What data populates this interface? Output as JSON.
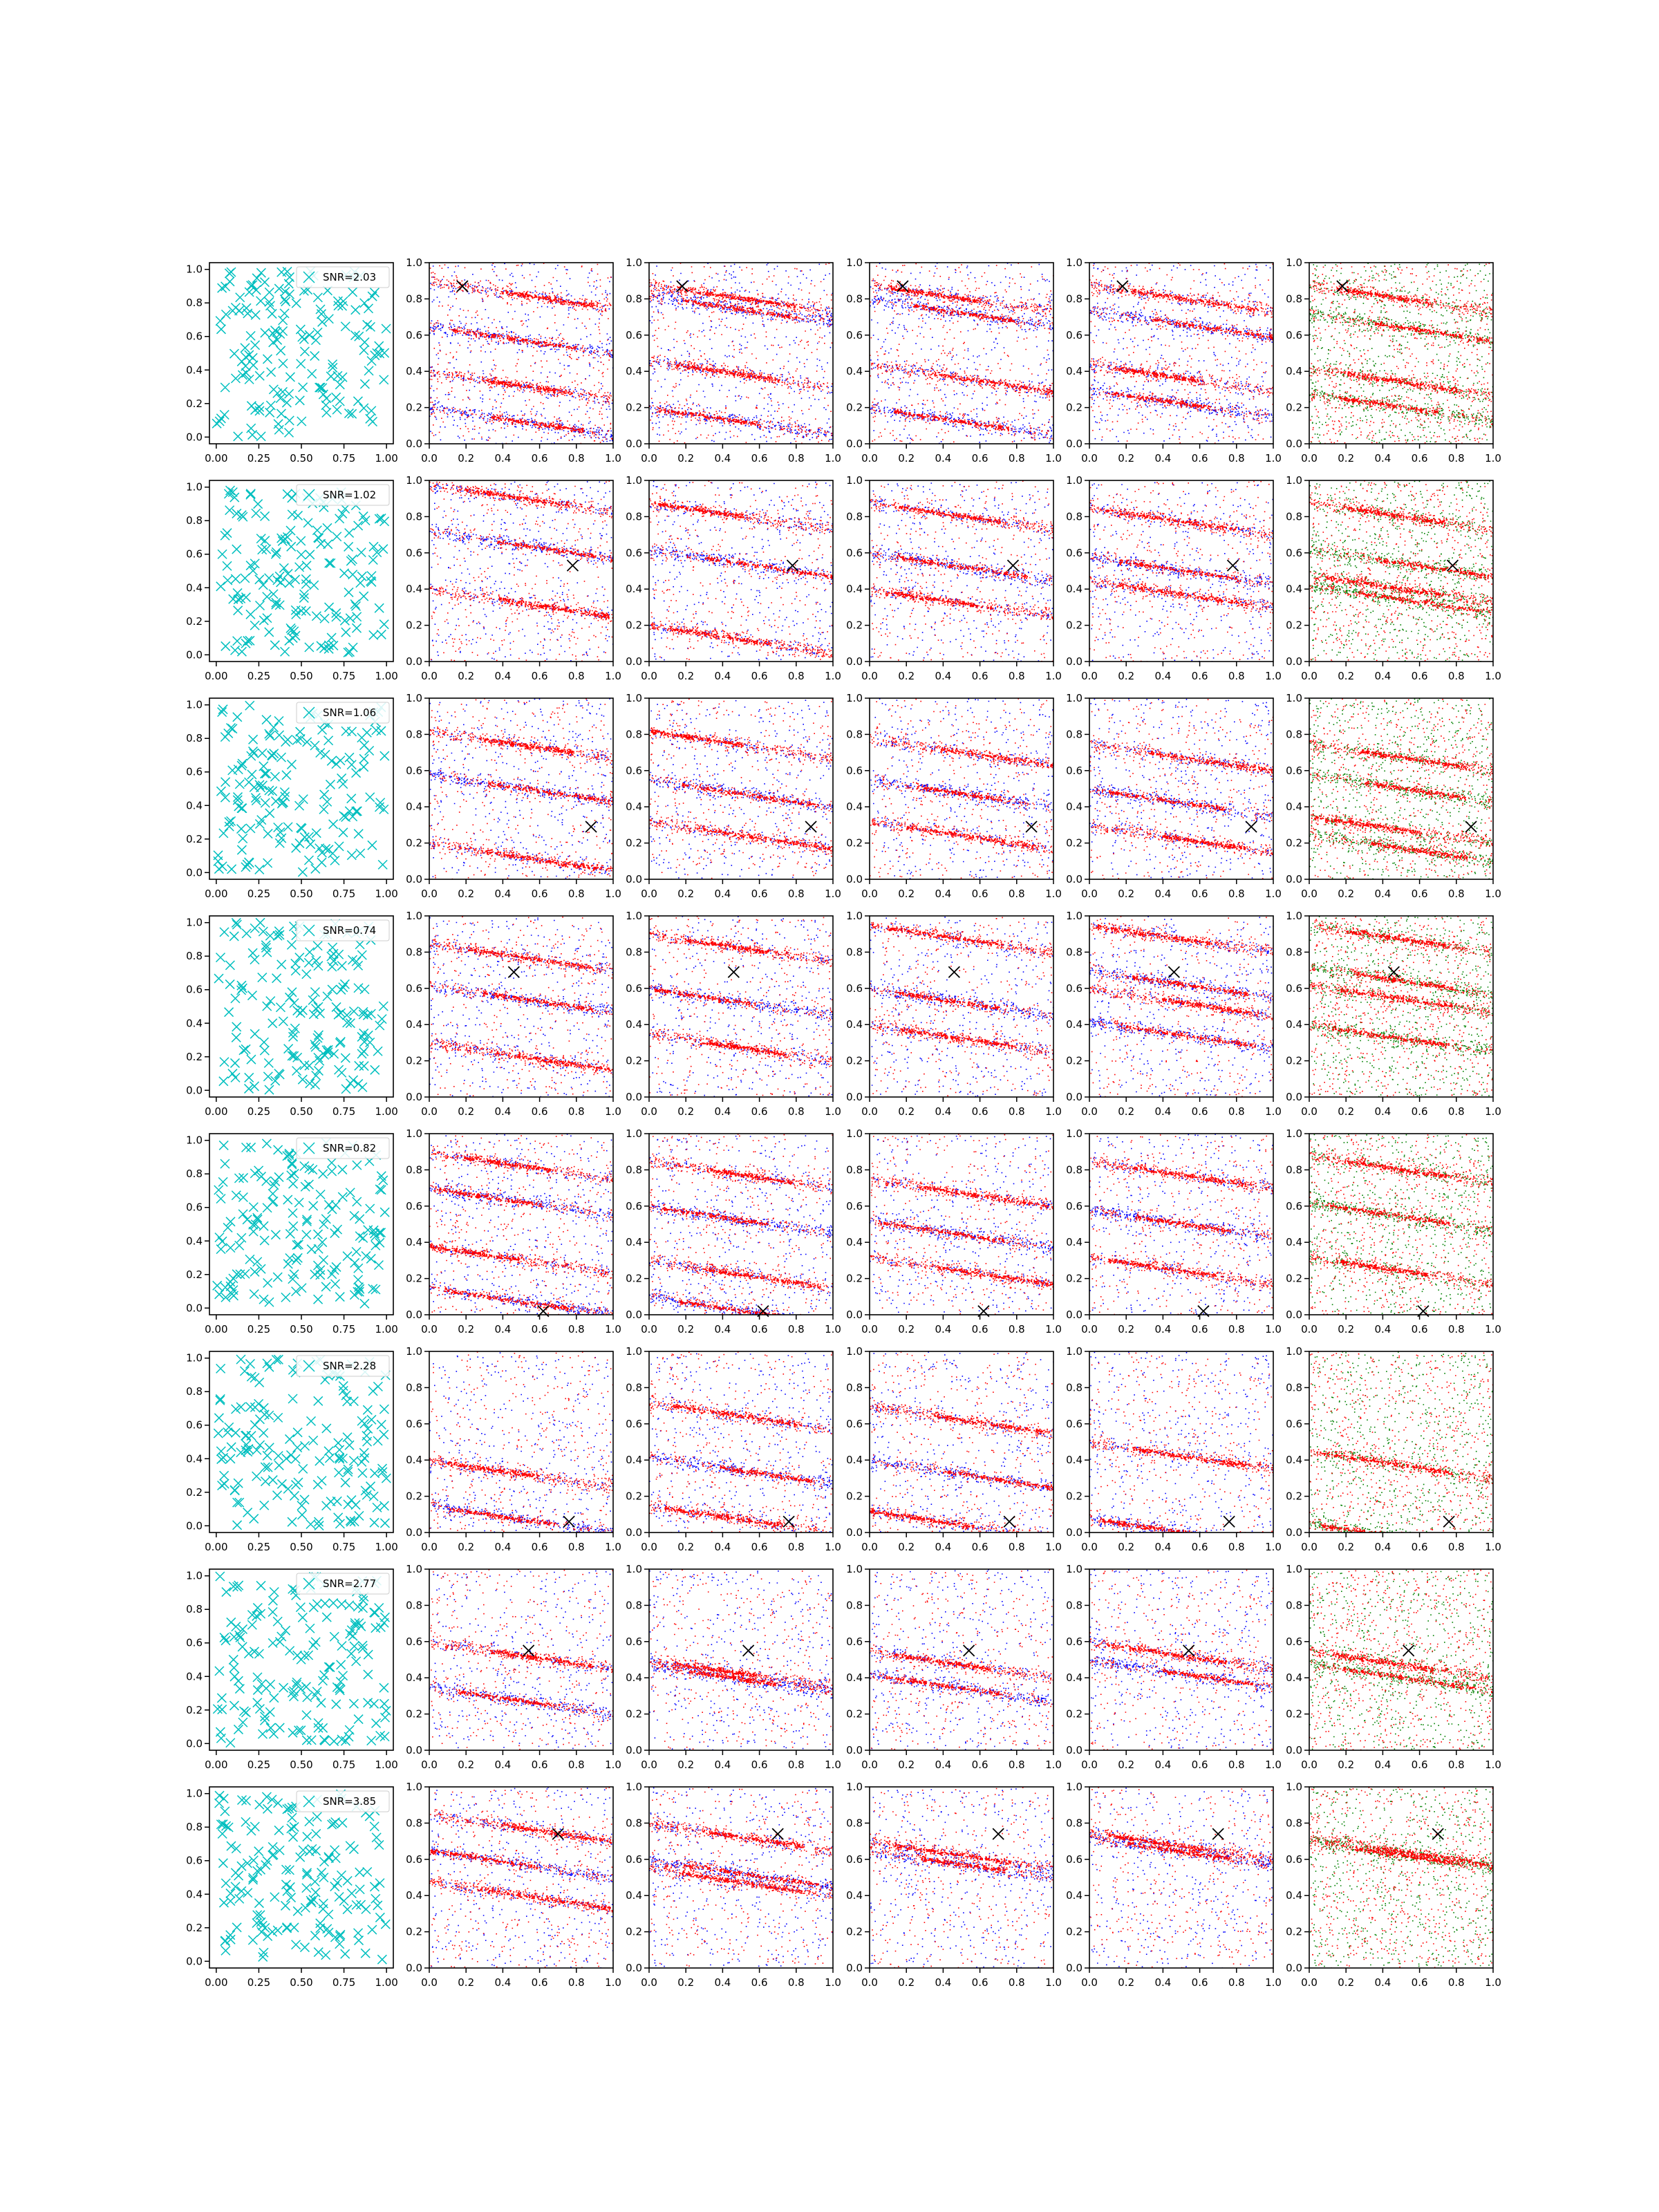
{
  "figure": {
    "layout": "8 rows x 6 columns grid of scatter subplots",
    "column_panels": [
      {
        "type": "scatter",
        "marker": "x",
        "color_names": [
          "cyan"
        ],
        "legend": "upper-right"
      },
      {
        "type": "scatter",
        "marker": "dot",
        "color_names": [
          "red",
          "blue"
        ],
        "overlay_marker": "x"
      },
      {
        "type": "scatter",
        "marker": "dot",
        "color_names": [
          "red",
          "blue"
        ],
        "overlay_marker": "x"
      },
      {
        "type": "scatter",
        "marker": "dot",
        "color_names": [
          "red",
          "blue"
        ],
        "overlay_marker": "x"
      },
      {
        "type": "scatter",
        "marker": "dot",
        "color_names": [
          "red",
          "blue"
        ],
        "overlay_marker": "x"
      },
      {
        "type": "scatter",
        "marker": "dot",
        "color_names": [
          "red",
          "green"
        ],
        "overlay_marker": "x"
      }
    ],
    "colors": {
      "cyan": "#00bfbf",
      "red": "#ff0000",
      "blue": "#0000ff",
      "green": "#008000",
      "cross": "#000000",
      "axes": "#000000",
      "background": "#ffffff"
    }
  },
  "chart_data": {
    "type": "scatter",
    "rows": 8,
    "cols": 6,
    "first_column": {
      "xlim": [
        -0.04,
        1.04
      ],
      "ylim": [
        -0.04,
        1.04
      ],
      "xticks": [
        "0.00",
        "0.25",
        "0.50",
        "0.75",
        "1.00"
      ],
      "yticks": [
        "0.0",
        "0.2",
        "0.4",
        "0.6",
        "0.8",
        "1.0"
      ],
      "legend_position": "upper-right"
    },
    "other_columns": {
      "xlim": [
        0,
        1
      ],
      "ylim": [
        0,
        1
      ],
      "xticks": [
        "0.0",
        "0.2",
        "0.4",
        "0.6",
        "0.8",
        "1.0"
      ],
      "yticks": [
        "0.0",
        "0.2",
        "0.4",
        "0.6",
        "0.8",
        "1.0"
      ]
    },
    "legends": [
      "SNR=2.03",
      "SNR=1.02",
      "SNR=1.06",
      "SNR=0.74",
      "SNR=0.82",
      "SNR=2.28",
      "SNR=2.77",
      "SNR=3.85"
    ],
    "cross_points": [
      [
        0.18,
        0.87
      ],
      [
        0.78,
        0.53
      ],
      [
        0.88,
        0.29
      ],
      [
        0.46,
        0.69
      ],
      [
        0.62,
        0.02
      ],
      [
        0.76,
        0.06
      ],
      [
        0.54,
        0.55
      ],
      [
        0.7,
        0.74
      ]
    ],
    "bands_note": "Scattered dots form inclined streaks drifting downward to the right (slope about -0.15); bands listed by row then panel column 2-6 as intercept y at x=0",
    "bands": [
      [
        [
          0.9,
          0.65,
          0.4,
          0.2
        ],
        [
          0.88,
          0.82,
          0.46,
          0.2
        ],
        [
          0.88,
          0.8,
          0.44,
          0.2
        ],
        [
          0.88,
          0.74,
          0.44,
          0.3
        ],
        [
          0.88,
          0.72,
          0.42,
          0.28
        ]
      ],
      [
        [
          0.98,
          0.72,
          0.4
        ],
        [
          0.88,
          0.62,
          0.2
        ],
        [
          0.88,
          0.6,
          0.4
        ],
        [
          0.85,
          0.58,
          0.45
        ],
        [
          0.88,
          0.62,
          0.48,
          0.42
        ]
      ],
      [
        [
          0.82,
          0.58,
          0.2
        ],
        [
          0.82,
          0.55,
          0.32
        ],
        [
          0.78,
          0.55,
          0.32
        ],
        [
          0.75,
          0.5,
          0.3
        ],
        [
          0.75,
          0.58,
          0.35,
          0.25
        ]
      ],
      [
        [
          0.85,
          0.62,
          0.3
        ],
        [
          0.9,
          0.6,
          0.35
        ],
        [
          0.95,
          0.6,
          0.4
        ],
        [
          0.95,
          0.7,
          0.6,
          0.42
        ],
        [
          0.95,
          0.72,
          0.62,
          0.4
        ]
      ],
      [
        [
          0.9,
          0.7,
          0.38,
          0.15
        ],
        [
          0.85,
          0.6,
          0.3,
          0.1
        ],
        [
          0.75,
          0.52,
          0.32
        ],
        [
          0.85,
          0.58,
          0.32
        ],
        [
          0.88,
          0.62,
          0.32
        ]
      ],
      [
        [
          0.4,
          0.15
        ],
        [
          0.72,
          0.42,
          0.15
        ],
        [
          0.7,
          0.4,
          0.12
        ],
        [
          0.5,
          0.08
        ],
        [
          0.45,
          0.05
        ]
      ],
      [
        [
          0.6,
          0.35
        ],
        [
          0.5,
          0.47
        ],
        [
          0.55,
          0.42
        ],
        [
          0.6,
          0.5
        ],
        [
          0.55,
          0.48
        ]
      ],
      [
        [
          0.85,
          0.65,
          0.48
        ],
        [
          0.8,
          0.6,
          0.55
        ],
        [
          0.7,
          0.65
        ],
        [
          0.75,
          0.72
        ],
        [
          0.72,
          0.7
        ]
      ]
    ]
  }
}
